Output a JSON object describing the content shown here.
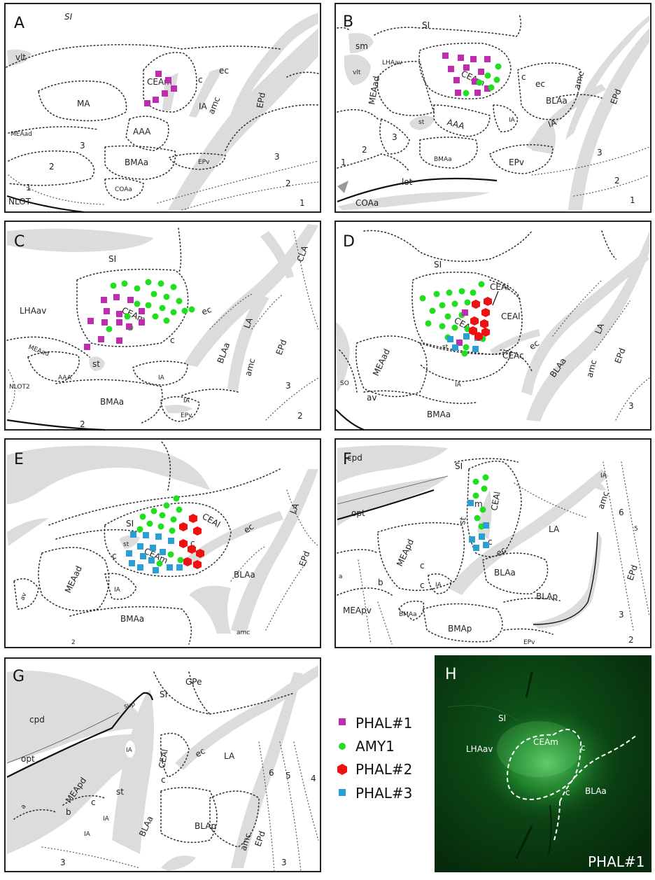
{
  "panels": {
    "A": {
      "letter": "A",
      "labels": [
        "SI",
        "vlt",
        "CEAm",
        "c",
        "ec",
        "MA",
        "IA",
        "amc",
        "EPd",
        "MEAad",
        "AAA",
        "3",
        "2",
        "BMAa",
        "EPv",
        "3",
        "1",
        "COAa",
        "2",
        "NLOT",
        "1"
      ]
    },
    "B": {
      "letter": "B",
      "labels": [
        "SI",
        "sm",
        "LHAav",
        "vlt",
        "CEAm",
        "c",
        "ec",
        "BLAa",
        "amc",
        "EPd",
        "MEAad",
        "st",
        "AAA",
        "IA",
        "IA",
        "3",
        "2",
        "BMAa",
        "EPv",
        "3",
        "1",
        "lot",
        "COAa",
        "2",
        "1"
      ]
    },
    "C": {
      "letter": "C",
      "labels": [
        "SI",
        "CLA",
        "LHAav",
        "CEAm",
        "ec",
        "c",
        "LA",
        "BLAa",
        "EPd",
        "MEAad",
        "st",
        "amc",
        "AAA",
        "IA",
        "NLOT2",
        "BMAa",
        "IA",
        "3",
        "EPv",
        "2",
        "2"
      ]
    },
    "D": {
      "letter": "D",
      "labels": [
        "SI",
        "CEAi",
        "CEAl",
        "CEAm",
        "st",
        "CEAc",
        "ec",
        "LA",
        "BLAa",
        "amc",
        "EPd",
        "MEAad",
        "IA",
        "SO",
        "av",
        "BMAa",
        "3"
      ]
    },
    "E": {
      "letter": "E",
      "labels": [
        "SI",
        "CEAl",
        "st",
        "CEAm",
        "ec",
        "LA",
        "c",
        "c",
        "c",
        "BLAa",
        "EPd",
        "MEAad",
        "IA",
        "av",
        "BMAa",
        "amc",
        "2"
      ]
    },
    "F": {
      "letter": "F",
      "labels": [
        "cpd",
        "SI",
        "IA",
        "m",
        "CEAl",
        "opt",
        "st",
        "c",
        "ec",
        "LA",
        "amc",
        "6",
        "5",
        "MEApd",
        "c",
        "BLAa",
        "EPd",
        "a",
        "b",
        "c",
        "IA",
        "BLAp",
        "MEApv",
        "BMAa",
        "BMAp",
        "3",
        "EPv",
        "2"
      ]
    },
    "G": {
      "letter": "G",
      "labels": [
        "SI",
        "GPe",
        "sup",
        "cpd",
        "IA",
        "CEAl",
        "ec",
        "LA",
        "opt",
        "c",
        "6",
        "5",
        "4",
        "MEApd",
        "st",
        "a",
        "b",
        "c",
        "IA",
        "IA",
        "BLAa",
        "BLAp",
        "amc",
        "EPd",
        "3",
        "3"
      ]
    },
    "H": {
      "letter": "H",
      "labels": [
        "SI",
        "LHAav",
        "CEAm",
        "c",
        "c",
        "BLAa"
      ],
      "caption": "PHAL#1"
    }
  },
  "legend": [
    {
      "label": "PHAL#1",
      "shape": "square",
      "color": "#c02cb0"
    },
    {
      "label": "AMY1",
      "shape": "circle",
      "color": "#22dd22"
    },
    {
      "label": "PHAL#2",
      "shape": "hexagon",
      "color": "#ee1111"
    },
    {
      "label": "PHAL#3",
      "shape": "square",
      "color": "#2a9fd6"
    }
  ]
}
